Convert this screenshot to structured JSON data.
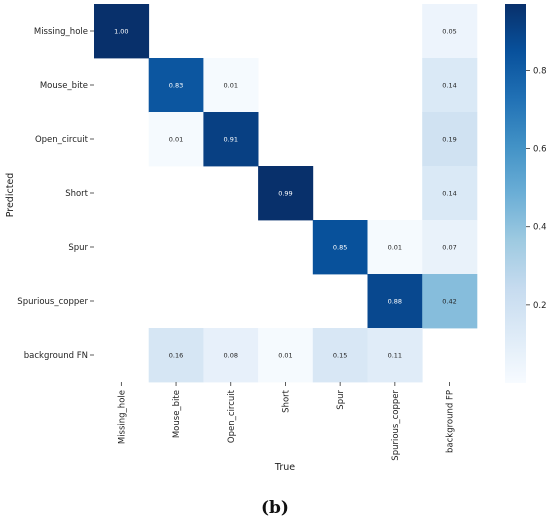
{
  "chart_data": {
    "type": "heatmap",
    "xlabel": "True",
    "ylabel": "Predicted",
    "x_categories": [
      "Missing_hole",
      "Mouse_bite",
      "Open_circuit",
      "Short",
      "Spur",
      "Spurious_copper",
      "background FP"
    ],
    "y_categories": [
      "Missing_hole",
      "Mouse_bite",
      "Open_circuit",
      "Short",
      "Spur",
      "Spurious_copper",
      "background FN"
    ],
    "values": [
      [
        1.0,
        null,
        null,
        null,
        null,
        null,
        0.05
      ],
      [
        null,
        0.83,
        0.01,
        null,
        null,
        null,
        0.14
      ],
      [
        null,
        0.01,
        0.91,
        null,
        null,
        null,
        0.19
      ],
      [
        null,
        null,
        null,
        0.99,
        null,
        null,
        0.14
      ],
      [
        null,
        null,
        null,
        null,
        0.85,
        0.01,
        0.07
      ],
      [
        null,
        null,
        null,
        null,
        null,
        0.88,
        0.42
      ],
      [
        null,
        0.16,
        0.08,
        0.01,
        0.15,
        0.11,
        null
      ]
    ],
    "value_format": "2-decimals",
    "colormap": "Blues",
    "colorbar": {
      "range": [
        0,
        0.97
      ],
      "ticks": [
        0.2,
        0.4,
        0.6,
        0.8
      ],
      "tick_labels": [
        "0.2",
        "0.4",
        "0.6",
        "0.8"
      ]
    },
    "grid": false
  },
  "caption": {
    "text": "(b)"
  }
}
